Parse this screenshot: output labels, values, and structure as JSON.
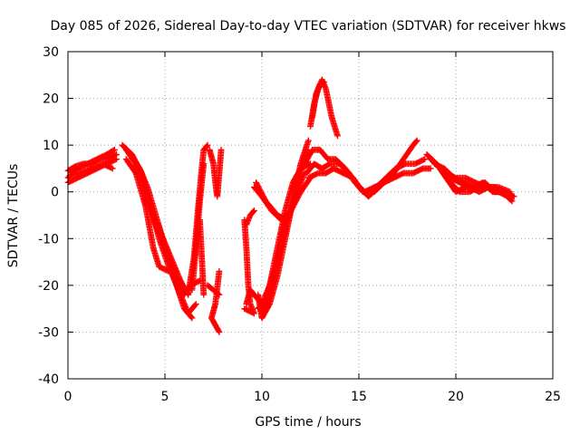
{
  "chart_data": {
    "type": "scatter",
    "title": "Day 085 of 2026, Sidereal Day-to-day VTEC variation (SDTVAR) for receiver hkws",
    "xlabel": "GPS time / hours",
    "ylabel": "SDTVAR / TECUs",
    "xlim": [
      0,
      25
    ],
    "ylim": [
      -40,
      30
    ],
    "xticks": [
      "0",
      "5",
      "10",
      "15",
      "20",
      "25"
    ],
    "yticks": [
      "-40",
      "-30",
      "-20",
      "-10",
      "0",
      "10",
      "20",
      "30"
    ],
    "grid": true,
    "marker": "plus",
    "color": "#ff0000",
    "series": [
      {
        "points": [
          [
            0,
            3
          ],
          [
            0.5,
            5
          ],
          [
            1,
            6
          ],
          [
            1.5,
            7
          ],
          [
            2,
            8
          ],
          [
            2.4,
            9
          ]
        ]
      },
      {
        "points": [
          [
            0,
            2
          ],
          [
            0.5,
            3
          ],
          [
            1,
            4
          ],
          [
            1.5,
            5
          ],
          [
            2,
            6
          ],
          [
            2.5,
            7
          ]
        ]
      },
      {
        "points": [
          [
            0,
            4.5
          ],
          [
            0.4,
            5.5
          ],
          [
            0.8,
            6
          ],
          [
            1.2,
            6
          ],
          [
            1.6,
            7
          ],
          [
            2,
            7
          ],
          [
            2.5,
            8
          ]
        ]
      },
      {
        "points": [
          [
            0.1,
            3.5
          ],
          [
            0.6,
            4
          ],
          [
            1.2,
            5
          ],
          [
            1.8,
            6
          ],
          [
            2.3,
            5
          ]
        ]
      },
      {
        "points": [
          [
            2.8,
            10
          ],
          [
            3.3,
            8
          ],
          [
            3.8,
            4
          ],
          [
            4.2,
            -2
          ],
          [
            4.7,
            -10
          ],
          [
            5.2,
            -16
          ],
          [
            5.7,
            -21
          ],
          [
            6.2,
            -26
          ],
          [
            6.6,
            -24
          ]
        ]
      },
      {
        "points": [
          [
            3,
            9
          ],
          [
            3.5,
            6
          ],
          [
            4,
            0
          ],
          [
            4.5,
            -7
          ],
          [
            5,
            -12
          ],
          [
            5.5,
            -17
          ],
          [
            6,
            -22
          ],
          [
            6.3,
            -20
          ],
          [
            6.8,
            -19
          ]
        ]
      },
      {
        "points": [
          [
            3,
            7
          ],
          [
            3.5,
            4
          ],
          [
            4,
            -3
          ],
          [
            4.4,
            -12
          ],
          [
            4.7,
            -16
          ],
          [
            5.2,
            -17
          ]
        ]
      },
      {
        "points": [
          [
            3.2,
            8
          ],
          [
            3.7,
            5
          ],
          [
            4.1,
            1
          ],
          [
            4.6,
            -6
          ],
          [
            5.1,
            -13
          ],
          [
            5.6,
            -20
          ],
          [
            6,
            -25
          ],
          [
            6.4,
            -27
          ]
        ]
      },
      {
        "points": [
          [
            3.5,
            6
          ],
          [
            3.9,
            2
          ],
          [
            4.3,
            -4
          ],
          [
            4.8,
            -9
          ],
          [
            5.3,
            -14
          ],
          [
            5.8,
            -19
          ],
          [
            6.2,
            -22
          ]
        ]
      },
      {
        "points": [
          [
            6.2,
            -22
          ],
          [
            6.5,
            -14
          ],
          [
            6.7,
            -4
          ],
          [
            6.9,
            5
          ],
          [
            7,
            9
          ],
          [
            7.2,
            10
          ]
        ]
      },
      {
        "points": [
          [
            6.4,
            -21
          ],
          [
            6.6,
            -12
          ],
          [
            6.8,
            -2
          ],
          [
            7,
            6
          ]
        ]
      },
      {
        "points": [
          [
            6.8,
            -6
          ],
          [
            6.9,
            -14
          ],
          [
            7,
            -22
          ]
        ]
      },
      {
        "points": [
          [
            7.2,
            -20
          ],
          [
            7.5,
            -21
          ],
          [
            7.8,
            -22
          ]
        ]
      },
      {
        "points": [
          [
            7.8,
            -17
          ],
          [
            7.6,
            -24
          ],
          [
            7.4,
            -27
          ],
          [
            7.8,
            -30
          ]
        ]
      },
      {
        "points": [
          [
            7.3,
            9
          ],
          [
            7.5,
            6
          ],
          [
            7.6,
            2
          ],
          [
            7.7,
            -1
          ],
          [
            7.9,
            9
          ]
        ]
      },
      {
        "points": [
          [
            9.1,
            -6
          ],
          [
            9.2,
            -12
          ],
          [
            9.3,
            -20
          ],
          [
            9.4,
            -24
          ],
          [
            9.6,
            -26
          ],
          [
            9.1,
            -25
          ]
        ]
      },
      {
        "points": [
          [
            9.2,
            -24
          ],
          [
            9.4,
            -21
          ],
          [
            9.6,
            -22
          ]
        ]
      },
      {
        "points": [
          [
            9.2,
            -7
          ],
          [
            9.4,
            -5
          ],
          [
            9.6,
            -4
          ]
        ]
      },
      {
        "points": [
          [
            9.8,
            -22
          ],
          [
            10,
            -27
          ],
          [
            10.4,
            -24
          ],
          [
            10.8,
            -18
          ],
          [
            11.2,
            -10
          ],
          [
            11.6,
            -2
          ],
          [
            12,
            6
          ],
          [
            12.4,
            11
          ]
        ]
      },
      {
        "points": [
          [
            9.6,
            -22
          ],
          [
            10,
            -24
          ],
          [
            10.4,
            -20
          ],
          [
            10.8,
            -12
          ],
          [
            11.2,
            -4
          ],
          [
            11.6,
            2
          ],
          [
            12,
            5
          ],
          [
            12.5,
            6
          ]
        ]
      },
      {
        "points": [
          [
            9.8,
            -25
          ],
          [
            10.2,
            -23
          ],
          [
            10.7,
            -16
          ],
          [
            11.1,
            -8
          ],
          [
            11.5,
            -4
          ],
          [
            11.9,
            3
          ],
          [
            12.3,
            9
          ]
        ]
      },
      {
        "points": [
          [
            10,
            -26
          ],
          [
            10.5,
            -21
          ],
          [
            11,
            -12
          ],
          [
            11.4,
            -5
          ],
          [
            11.8,
            0
          ],
          [
            12.2,
            4
          ]
        ]
      },
      {
        "points": [
          [
            9.6,
            1
          ],
          [
            10,
            -1
          ],
          [
            10.5,
            -4
          ],
          [
            11,
            -6
          ],
          [
            11.5,
            -4
          ],
          [
            12,
            0
          ],
          [
            12.5,
            3
          ]
        ]
      },
      {
        "points": [
          [
            9.7,
            2
          ],
          [
            10.2,
            -2
          ],
          [
            10.8,
            -5
          ],
          [
            11.3,
            -6
          ]
        ]
      },
      {
        "points": [
          [
            12.5,
            14
          ],
          [
            12.7,
            19
          ],
          [
            12.9,
            22
          ],
          [
            13.1,
            24
          ],
          [
            13.3,
            22
          ],
          [
            13.6,
            16
          ],
          [
            13.9,
            12
          ]
        ]
      },
      {
        "points": [
          [
            12.6,
            16
          ],
          [
            12.8,
            21
          ],
          [
            13,
            23
          ],
          [
            13.2,
            23.5
          ]
        ]
      },
      {
        "points": [
          [
            12.2,
            6
          ],
          [
            12.6,
            9
          ],
          [
            13,
            9
          ],
          [
            13.4,
            7
          ],
          [
            13.8,
            7
          ],
          [
            14.3,
            5
          ],
          [
            14.8,
            2
          ],
          [
            15.3,
            0
          ],
          [
            15.8,
            1
          ]
        ]
      },
      {
        "points": [
          [
            12.3,
            4
          ],
          [
            12.7,
            6
          ],
          [
            13.1,
            5
          ],
          [
            13.5,
            6
          ],
          [
            14,
            6
          ],
          [
            14.5,
            4
          ],
          [
            15,
            1
          ],
          [
            15.5,
            -1
          ],
          [
            16,
            1
          ]
        ]
      },
      {
        "points": [
          [
            12.4,
            3
          ],
          [
            12.9,
            4
          ],
          [
            13.3,
            4
          ],
          [
            13.7,
            5
          ],
          [
            14.2,
            4
          ],
          [
            14.7,
            3
          ],
          [
            15.2,
            0
          ]
        ]
      },
      {
        "points": [
          [
            15.8,
            0
          ],
          [
            16.3,
            2
          ],
          [
            16.8,
            4
          ],
          [
            17.3,
            7
          ],
          [
            17.8,
            10
          ],
          [
            18,
            11
          ]
        ]
      },
      {
        "points": [
          [
            15.9,
            1
          ],
          [
            16.4,
            3
          ],
          [
            16.9,
            5
          ],
          [
            17.4,
            6
          ],
          [
            17.9,
            6
          ],
          [
            18.4,
            7
          ]
        ]
      },
      {
        "points": [
          [
            15.8,
            1
          ],
          [
            16.3,
            2
          ],
          [
            16.8,
            3
          ],
          [
            17.3,
            4
          ],
          [
            17.8,
            4
          ],
          [
            18.3,
            5
          ],
          [
            18.7,
            5
          ]
        ]
      },
      {
        "points": [
          [
            18.5,
            8
          ],
          [
            19,
            6
          ],
          [
            19.5,
            3
          ],
          [
            20,
            0
          ],
          [
            20.5,
            1
          ],
          [
            21,
            1
          ],
          [
            21.5,
            2
          ],
          [
            22,
            0
          ],
          [
            22.5,
            0
          ],
          [
            22.9,
            -1
          ]
        ]
      },
      {
        "points": [
          [
            18.7,
            7
          ],
          [
            19.2,
            5
          ],
          [
            19.7,
            2
          ],
          [
            20.2,
            0
          ],
          [
            20.7,
            0
          ],
          [
            21.2,
            1
          ],
          [
            21.7,
            1
          ],
          [
            22.2,
            0
          ],
          [
            22.7,
            -1
          ]
        ]
      },
      {
        "points": [
          [
            19,
            6
          ],
          [
            19.5,
            4
          ],
          [
            20,
            3
          ],
          [
            20.5,
            3
          ],
          [
            21,
            2
          ],
          [
            21.5,
            1
          ],
          [
            22,
            1
          ],
          [
            22.5,
            0
          ],
          [
            23,
            -1
          ]
        ]
      },
      {
        "points": [
          [
            19.2,
            5
          ],
          [
            19.7,
            3
          ],
          [
            20.2,
            2
          ],
          [
            20.7,
            1
          ],
          [
            21.2,
            0
          ],
          [
            21.7,
            1
          ],
          [
            22.2,
            1
          ],
          [
            22.8,
            0
          ]
        ]
      },
      {
        "points": [
          [
            18.9,
            6
          ],
          [
            19.4,
            5
          ],
          [
            19.9,
            3
          ],
          [
            20.4,
            2
          ],
          [
            20.9,
            1
          ],
          [
            21.4,
            2
          ],
          [
            21.9,
            0
          ],
          [
            22.4,
            0
          ],
          [
            22.9,
            -2
          ]
        ]
      }
    ]
  }
}
